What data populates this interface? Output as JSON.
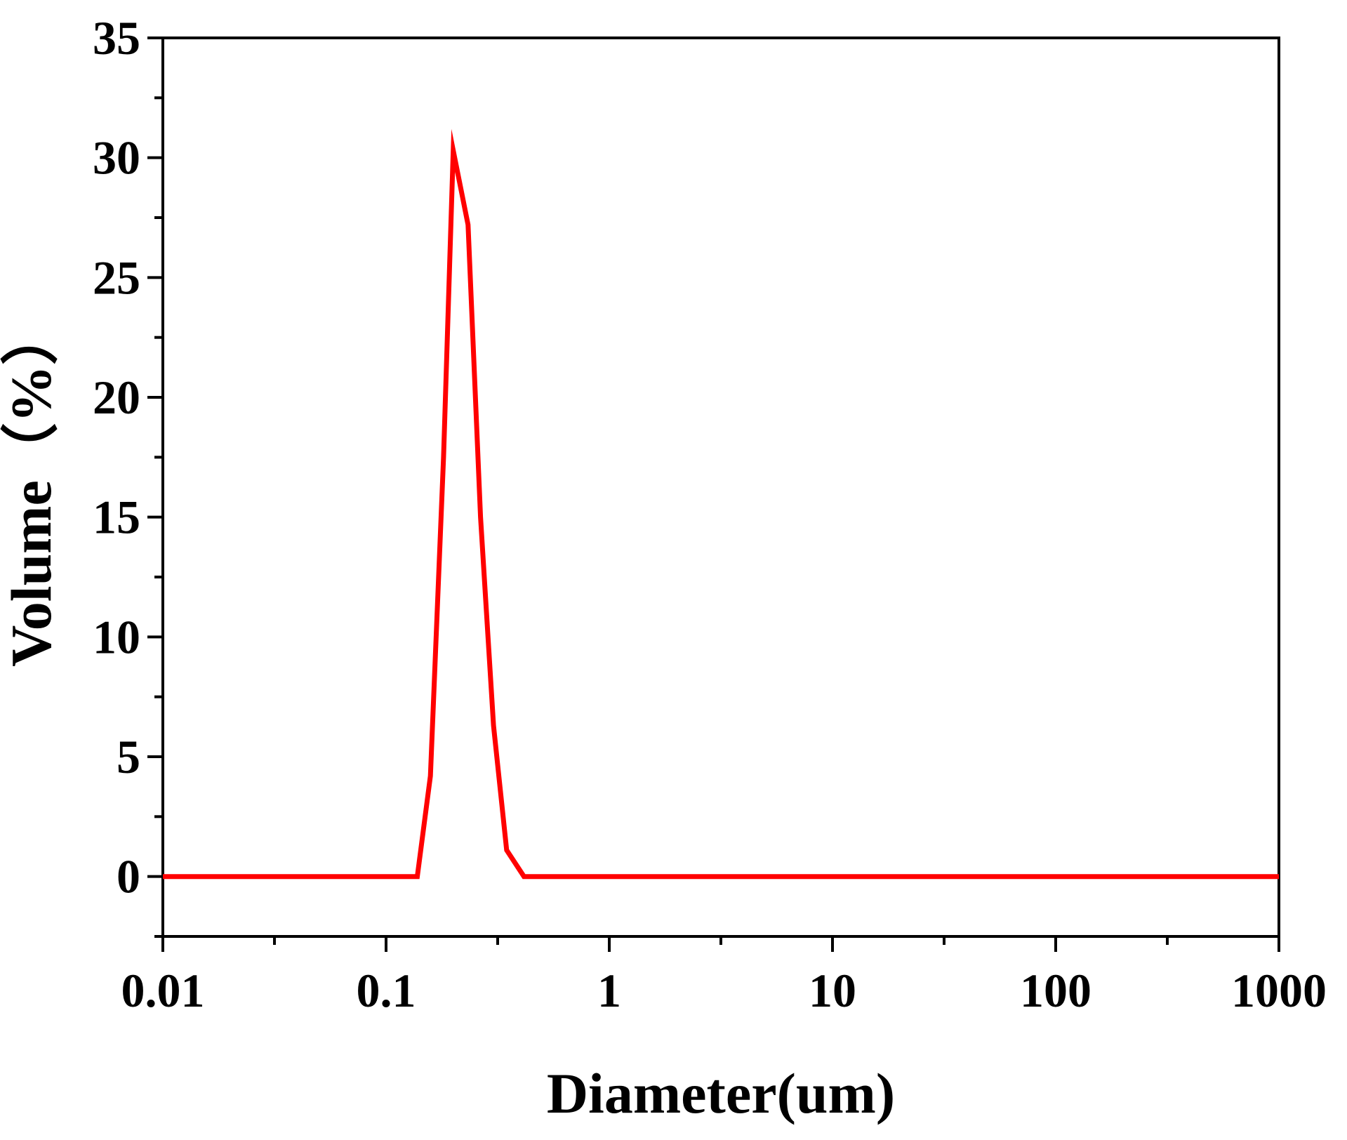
{
  "chart_data": {
    "type": "line",
    "title": "",
    "xlabel": "Diameter(um)",
    "ylabel": "Volume（%）",
    "x_scale": "log",
    "xlim": [
      0.01,
      1000
    ],
    "ylim": [
      -2.5,
      35
    ],
    "x_ticks": [
      0.01,
      0.1,
      1,
      10,
      100,
      1000
    ],
    "x_tick_labels": [
      "0.01",
      "0.1",
      "1",
      "10",
      "100",
      "1000"
    ],
    "y_ticks": [
      0,
      5,
      10,
      15,
      20,
      25,
      30,
      35
    ],
    "y_tick_labels": [
      "0",
      "5",
      "10",
      "15",
      "20",
      "25",
      "30",
      "35"
    ],
    "grid": false,
    "legend": "none",
    "series": [
      {
        "color": "#ff0000",
        "x": [
          0.01,
          0.138,
          0.158,
          0.181,
          0.2,
          0.233,
          0.265,
          0.303,
          0.347,
          0.415,
          1,
          10,
          100,
          1000
        ],
        "y": [
          0,
          0,
          4.2,
          17.5,
          30.3,
          27.2,
          15,
          6.3,
          1.1,
          0,
          0,
          0,
          0,
          0
        ]
      }
    ]
  }
}
